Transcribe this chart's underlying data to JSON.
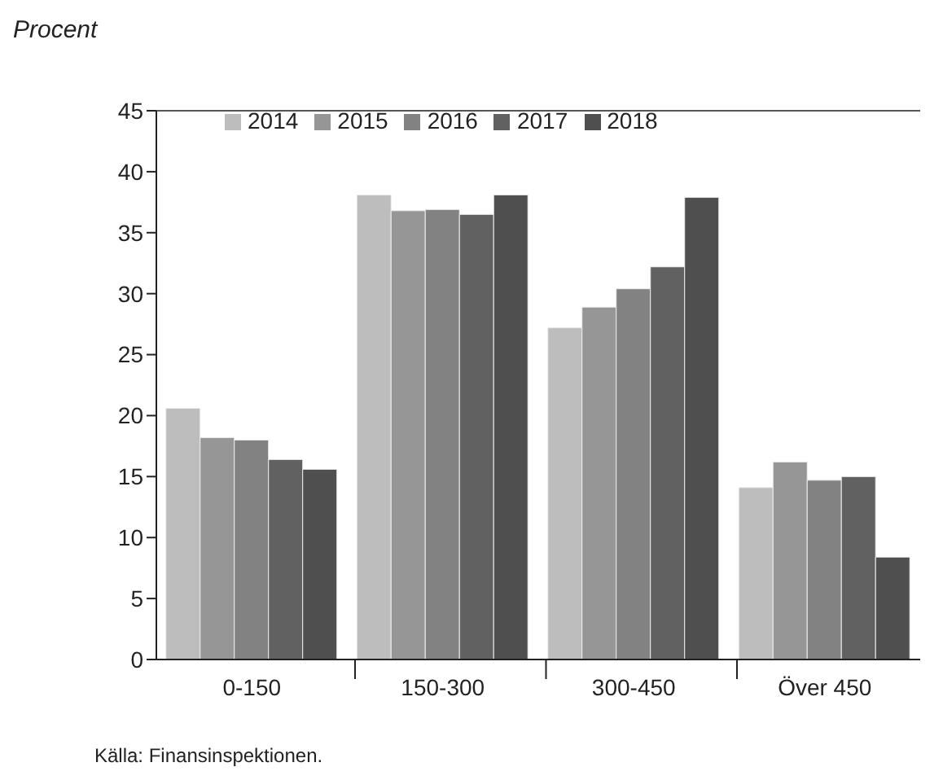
{
  "chart_data": {
    "type": "bar",
    "ylabel": "Procent",
    "categories": [
      "0-150",
      "150-300",
      "300-450",
      "Över 450"
    ],
    "series": [
      {
        "name": "2014",
        "color": "#bdbdbd",
        "values": [
          20.6,
          38.1,
          27.2,
          14.1
        ]
      },
      {
        "name": "2015",
        "color": "#969696",
        "values": [
          18.2,
          36.8,
          28.9,
          16.2
        ]
      },
      {
        "name": "2016",
        "color": "#828282",
        "values": [
          18.0,
          36.9,
          30.4,
          14.7
        ]
      },
      {
        "name": "2017",
        "color": "#616161",
        "values": [
          16.4,
          36.5,
          32.2,
          15.0
        ]
      },
      {
        "name": "2018",
        "color": "#4f4f4f",
        "values": [
          15.6,
          38.1,
          37.9,
          8.4
        ]
      }
    ],
    "ylim": [
      0,
      45
    ],
    "yticks": [
      0,
      5,
      10,
      15,
      20,
      25,
      30,
      35,
      40,
      45
    ],
    "grid": false,
    "legend": "top",
    "annotations": [
      "Källa: Finansinspektionen."
    ]
  }
}
